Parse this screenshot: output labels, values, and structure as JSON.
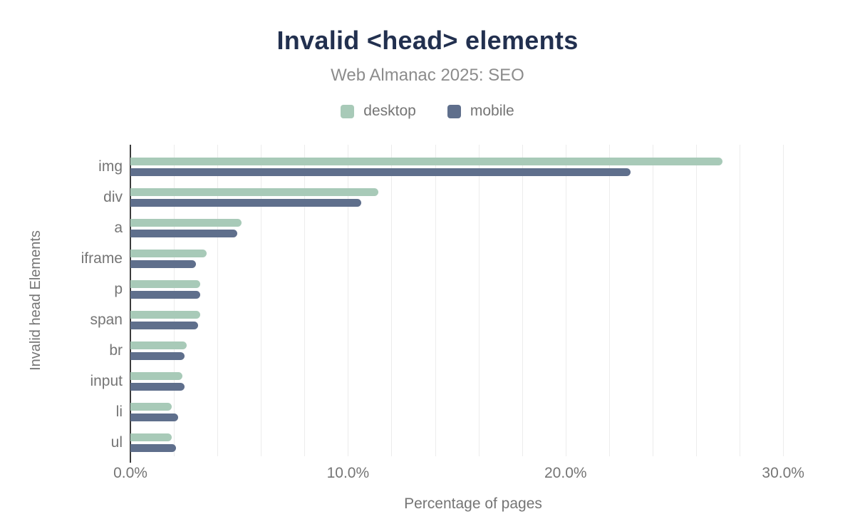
{
  "header": {
    "title": "Invalid <head> elements",
    "subtitle": "Web Almanac 2025: SEO"
  },
  "legend": [
    {
      "label": "desktop",
      "color": "#a8cab8"
    },
    {
      "label": "mobile",
      "color": "#5f6f8c"
    }
  ],
  "colors": {
    "title": "#22304f",
    "axis_text": "#757575",
    "gridline": "#ececec",
    "axis_line": "#3d3d3d",
    "desktop": "#a8cab8",
    "mobile": "#5f6f8c"
  },
  "chart_data": {
    "type": "bar",
    "orientation": "horizontal",
    "title": "Invalid <head> elements",
    "subtitle": "Web Almanac 2025: SEO",
    "xlabel": "Percentage of pages",
    "ylabel": "Invalid head Elements",
    "categories": [
      "img",
      "div",
      "a",
      "iframe",
      "p",
      "span",
      "br",
      "input",
      "li",
      "ul"
    ],
    "series": [
      {
        "name": "desktop",
        "color": "#a8cab8",
        "values": [
          27.2,
          11.4,
          5.1,
          3.5,
          3.2,
          3.2,
          2.6,
          2.4,
          1.9,
          1.9
        ]
      },
      {
        "name": "mobile",
        "color": "#5f6f8c",
        "values": [
          23.0,
          10.6,
          4.9,
          3.0,
          3.2,
          3.1,
          2.5,
          2.5,
          2.2,
          2.1
        ]
      }
    ],
    "x_ticks": [
      "0.0%",
      "10.0%",
      "20.0%",
      "30.0%"
    ],
    "x_tick_values": [
      0,
      10,
      20,
      30
    ],
    "xlim": [
      0,
      31.5
    ],
    "gridline_step": 2,
    "grid": true,
    "legend_position": "top",
    "value_unit": "%"
  }
}
